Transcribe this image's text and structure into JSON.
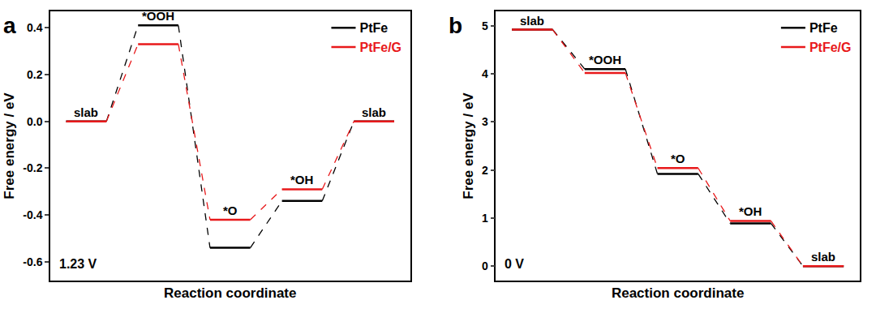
{
  "chart_data": [
    {
      "type": "line",
      "title": "a",
      "annotations": [
        "1.23 V"
      ],
      "x_label": "Reaction coordinate",
      "y_label": "Free energy / eV",
      "categories": [
        "slab",
        "*OOH",
        "*O",
        "*OH",
        "slab"
      ],
      "series": [
        {
          "name": "PtFe",
          "color": "#000000",
          "line_style": "dashed",
          "values": [
            0,
            0.41,
            -0.54,
            -0.34,
            0
          ]
        },
        {
          "name": "PtFe/G",
          "color": "#e8191b",
          "line_style": "dashed",
          "values": [
            0,
            0.33,
            -0.42,
            -0.29,
            0
          ]
        }
      ],
      "ylim": [
        -0.68,
        0.47
      ],
      "yticks": [
        -0.6,
        -0.4,
        -0.2,
        {
          "value": 0,
          "label": "0.0"
        },
        0.2,
        0.4
      ],
      "legend": "top right",
      "grid": false,
      "tick_labels": "y"
    },
    {
      "type": "line",
      "title": "b",
      "annotations": [
        "0 V"
      ],
      "x_label": "Reaction coordinate",
      "y_label": "Free energy / eV",
      "categories": [
        "slab",
        "*OOH",
        "*O",
        "*OH",
        "slab"
      ],
      "series": [
        {
          "name": "PtFe",
          "color": "#000000",
          "line_style": "dashed",
          "values": [
            4.92,
            4.1,
            1.92,
            0.89,
            0
          ]
        },
        {
          "name": "PtFe/G",
          "color": "#e8191b",
          "line_style": "dashed",
          "values": [
            4.92,
            4.02,
            2.04,
            0.94,
            0
          ]
        }
      ],
      "ylim": [
        -0.3,
        5.3
      ],
      "yticks": [
        0,
        1,
        2,
        3,
        4,
        5
      ],
      "legend": "top right",
      "grid": false,
      "tick_labels": "y"
    }
  ]
}
